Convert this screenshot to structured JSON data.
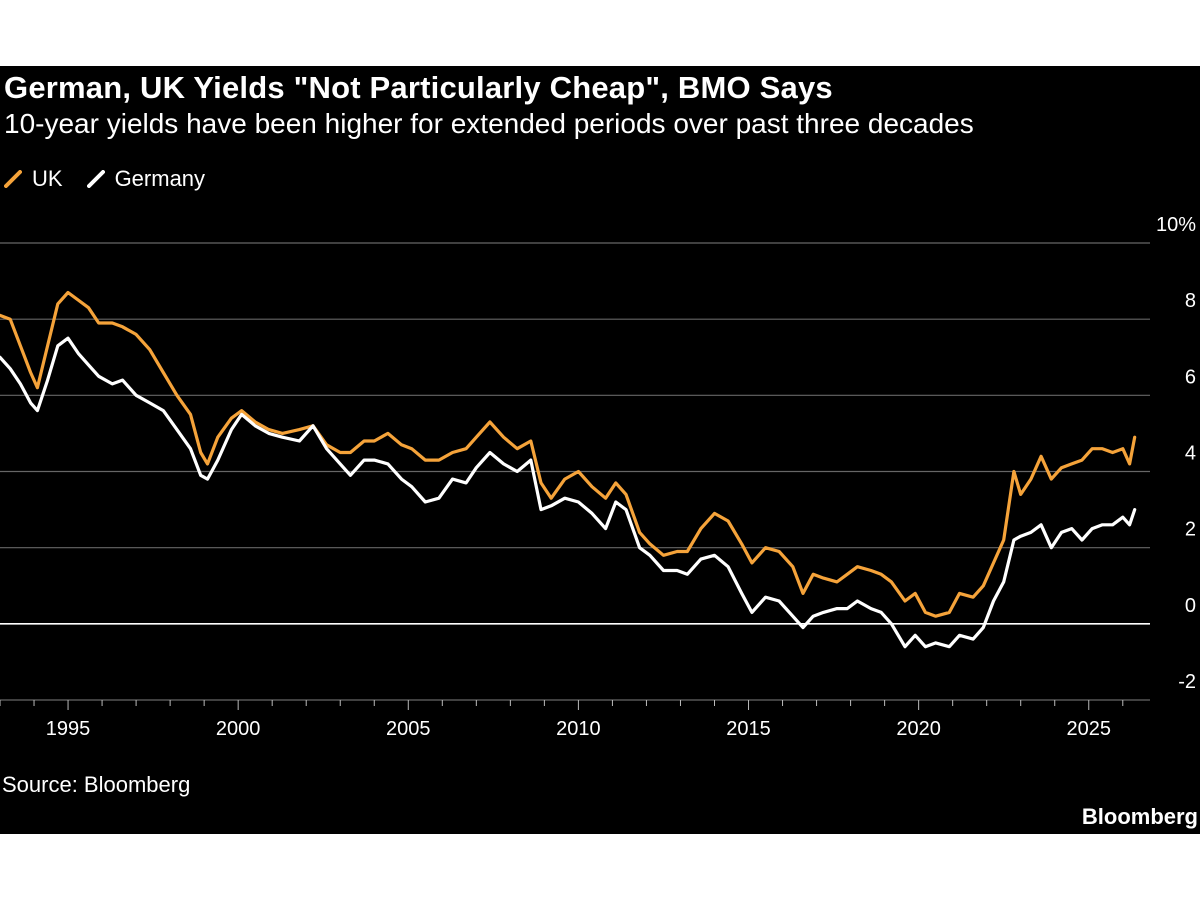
{
  "header": {
    "title": "German, UK Yields \"Not Particularly Cheap\", BMO Says",
    "subtitle": "10-year yields have been higher for extended periods over past three decades"
  },
  "legend": {
    "items": [
      {
        "label": "UK",
        "color": "#f5a33a"
      },
      {
        "label": "Germany",
        "color": "#ffffff"
      }
    ]
  },
  "footer": {
    "source": "Source: Bloomberg",
    "brand": "Bloomberg"
  },
  "chart_data": {
    "type": "line",
    "title": "German, UK Yields \"Not Particularly Cheap\", BMO Says",
    "subtitle": "10-year yields have been higher for extended periods over past three decades",
    "xlabel": "",
    "ylabel": "",
    "xlim": [
      1993,
      2026.8
    ],
    "ylim": [
      -2,
      10
    ],
    "y_ticks": [
      -2,
      0,
      2,
      4,
      6,
      8,
      10
    ],
    "y_tick_labels": [
      "-2",
      "0",
      "2",
      "4",
      "6",
      "8",
      "10%"
    ],
    "x_ticks": [
      1995,
      2000,
      2005,
      2010,
      2015,
      2020,
      2025
    ],
    "x_tick_labels": [
      "1995",
      "2000",
      "2005",
      "2010",
      "2015",
      "2020",
      "2025"
    ],
    "grid": true,
    "legend_position": "top-left",
    "series": [
      {
        "name": "UK",
        "color": "#f5a33a",
        "points": [
          [
            1993.0,
            8.1
          ],
          [
            1993.3,
            8.0
          ],
          [
            1993.6,
            7.3
          ],
          [
            1993.9,
            6.6
          ],
          [
            1994.1,
            6.2
          ],
          [
            1994.4,
            7.3
          ],
          [
            1994.7,
            8.4
          ],
          [
            1995.0,
            8.7
          ],
          [
            1995.3,
            8.5
          ],
          [
            1995.6,
            8.3
          ],
          [
            1995.9,
            7.9
          ],
          [
            1996.3,
            7.9
          ],
          [
            1996.6,
            7.8
          ],
          [
            1997.0,
            7.6
          ],
          [
            1997.4,
            7.2
          ],
          [
            1997.8,
            6.6
          ],
          [
            1998.2,
            6.0
          ],
          [
            1998.6,
            5.5
          ],
          [
            1998.9,
            4.5
          ],
          [
            1999.1,
            4.2
          ],
          [
            1999.4,
            4.9
          ],
          [
            1999.8,
            5.4
          ],
          [
            2000.1,
            5.6
          ],
          [
            2000.5,
            5.3
          ],
          [
            2000.9,
            5.1
          ],
          [
            2001.3,
            5.0
          ],
          [
            2001.8,
            5.1
          ],
          [
            2002.2,
            5.2
          ],
          [
            2002.6,
            4.7
          ],
          [
            2003.0,
            4.5
          ],
          [
            2003.3,
            4.5
          ],
          [
            2003.7,
            4.8
          ],
          [
            2004.0,
            4.8
          ],
          [
            2004.4,
            5.0
          ],
          [
            2004.8,
            4.7
          ],
          [
            2005.1,
            4.6
          ],
          [
            2005.5,
            4.3
          ],
          [
            2005.9,
            4.3
          ],
          [
            2006.3,
            4.5
          ],
          [
            2006.7,
            4.6
          ],
          [
            2007.0,
            4.9
          ],
          [
            2007.4,
            5.3
          ],
          [
            2007.8,
            4.9
          ],
          [
            2008.2,
            4.6
          ],
          [
            2008.6,
            4.8
          ],
          [
            2008.9,
            3.7
          ],
          [
            2009.2,
            3.3
          ],
          [
            2009.6,
            3.8
          ],
          [
            2010.0,
            4.0
          ],
          [
            2010.4,
            3.6
          ],
          [
            2010.8,
            3.3
          ],
          [
            2011.1,
            3.7
          ],
          [
            2011.4,
            3.4
          ],
          [
            2011.8,
            2.4
          ],
          [
            2012.1,
            2.1
          ],
          [
            2012.5,
            1.8
          ],
          [
            2012.9,
            1.9
          ],
          [
            2013.2,
            1.9
          ],
          [
            2013.6,
            2.5
          ],
          [
            2014.0,
            2.9
          ],
          [
            2014.4,
            2.7
          ],
          [
            2014.8,
            2.1
          ],
          [
            2015.1,
            1.6
          ],
          [
            2015.5,
            2.0
          ],
          [
            2015.9,
            1.9
          ],
          [
            2016.3,
            1.5
          ],
          [
            2016.6,
            0.8
          ],
          [
            2016.9,
            1.3
          ],
          [
            2017.2,
            1.2
          ],
          [
            2017.6,
            1.1
          ],
          [
            2017.9,
            1.3
          ],
          [
            2018.2,
            1.5
          ],
          [
            2018.6,
            1.4
          ],
          [
            2018.9,
            1.3
          ],
          [
            2019.2,
            1.1
          ],
          [
            2019.6,
            0.6
          ],
          [
            2019.9,
            0.8
          ],
          [
            2020.2,
            0.3
          ],
          [
            2020.5,
            0.2
          ],
          [
            2020.9,
            0.3
          ],
          [
            2021.2,
            0.8
          ],
          [
            2021.6,
            0.7
          ],
          [
            2021.9,
            1.0
          ],
          [
            2022.2,
            1.6
          ],
          [
            2022.5,
            2.2
          ],
          [
            2022.8,
            4.0
          ],
          [
            2023.0,
            3.4
          ],
          [
            2023.3,
            3.8
          ],
          [
            2023.6,
            4.4
          ],
          [
            2023.9,
            3.8
          ],
          [
            2024.2,
            4.1
          ],
          [
            2024.5,
            4.2
          ],
          [
            2024.8,
            4.3
          ],
          [
            2025.1,
            4.6
          ],
          [
            2025.4,
            4.6
          ],
          [
            2025.7,
            4.5
          ],
          [
            2026.0,
            4.6
          ],
          [
            2026.2,
            4.2
          ],
          [
            2026.35,
            4.9
          ]
        ]
      },
      {
        "name": "Germany",
        "color": "#ffffff",
        "points": [
          [
            1993.0,
            7.0
          ],
          [
            1993.3,
            6.7
          ],
          [
            1993.6,
            6.3
          ],
          [
            1993.9,
            5.8
          ],
          [
            1994.1,
            5.6
          ],
          [
            1994.4,
            6.4
          ],
          [
            1994.7,
            7.3
          ],
          [
            1995.0,
            7.5
          ],
          [
            1995.3,
            7.1
          ],
          [
            1995.6,
            6.8
          ],
          [
            1995.9,
            6.5
          ],
          [
            1996.3,
            6.3
          ],
          [
            1996.6,
            6.4
          ],
          [
            1997.0,
            6.0
          ],
          [
            1997.4,
            5.8
          ],
          [
            1997.8,
            5.6
          ],
          [
            1998.2,
            5.1
          ],
          [
            1998.6,
            4.6
          ],
          [
            1998.9,
            3.9
          ],
          [
            1999.1,
            3.8
          ],
          [
            1999.4,
            4.3
          ],
          [
            1999.8,
            5.1
          ],
          [
            2000.1,
            5.5
          ],
          [
            2000.5,
            5.2
          ],
          [
            2000.9,
            5.0
          ],
          [
            2001.3,
            4.9
          ],
          [
            2001.8,
            4.8
          ],
          [
            2002.2,
            5.2
          ],
          [
            2002.6,
            4.6
          ],
          [
            2003.0,
            4.2
          ],
          [
            2003.3,
            3.9
          ],
          [
            2003.7,
            4.3
          ],
          [
            2004.0,
            4.3
          ],
          [
            2004.4,
            4.2
          ],
          [
            2004.8,
            3.8
          ],
          [
            2005.1,
            3.6
          ],
          [
            2005.5,
            3.2
          ],
          [
            2005.9,
            3.3
          ],
          [
            2006.3,
            3.8
          ],
          [
            2006.7,
            3.7
          ],
          [
            2007.0,
            4.1
          ],
          [
            2007.4,
            4.5
          ],
          [
            2007.8,
            4.2
          ],
          [
            2008.2,
            4.0
          ],
          [
            2008.6,
            4.3
          ],
          [
            2008.9,
            3.0
          ],
          [
            2009.2,
            3.1
          ],
          [
            2009.6,
            3.3
          ],
          [
            2010.0,
            3.2
          ],
          [
            2010.4,
            2.9
          ],
          [
            2010.8,
            2.5
          ],
          [
            2011.1,
            3.2
          ],
          [
            2011.4,
            3.0
          ],
          [
            2011.8,
            2.0
          ],
          [
            2012.1,
            1.8
          ],
          [
            2012.5,
            1.4
          ],
          [
            2012.9,
            1.4
          ],
          [
            2013.2,
            1.3
          ],
          [
            2013.6,
            1.7
          ],
          [
            2014.0,
            1.8
          ],
          [
            2014.4,
            1.5
          ],
          [
            2014.8,
            0.8
          ],
          [
            2015.1,
            0.3
          ],
          [
            2015.5,
            0.7
          ],
          [
            2015.9,
            0.6
          ],
          [
            2016.3,
            0.2
          ],
          [
            2016.6,
            -0.1
          ],
          [
            2016.9,
            0.2
          ],
          [
            2017.2,
            0.3
          ],
          [
            2017.6,
            0.4
          ],
          [
            2017.9,
            0.4
          ],
          [
            2018.2,
            0.6
          ],
          [
            2018.6,
            0.4
          ],
          [
            2018.9,
            0.3
          ],
          [
            2019.2,
            0.0
          ],
          [
            2019.6,
            -0.6
          ],
          [
            2019.9,
            -0.3
          ],
          [
            2020.2,
            -0.6
          ],
          [
            2020.5,
            -0.5
          ],
          [
            2020.9,
            -0.6
          ],
          [
            2021.2,
            -0.3
          ],
          [
            2021.6,
            -0.4
          ],
          [
            2021.9,
            -0.1
          ],
          [
            2022.2,
            0.6
          ],
          [
            2022.5,
            1.1
          ],
          [
            2022.8,
            2.2
          ],
          [
            2023.0,
            2.3
          ],
          [
            2023.3,
            2.4
          ],
          [
            2023.6,
            2.6
          ],
          [
            2023.9,
            2.0
          ],
          [
            2024.2,
            2.4
          ],
          [
            2024.5,
            2.5
          ],
          [
            2024.8,
            2.2
          ],
          [
            2025.1,
            2.5
          ],
          [
            2025.4,
            2.6
          ],
          [
            2025.7,
            2.6
          ],
          [
            2026.0,
            2.8
          ],
          [
            2026.2,
            2.6
          ],
          [
            2026.35,
            3.0
          ]
        ]
      }
    ]
  }
}
